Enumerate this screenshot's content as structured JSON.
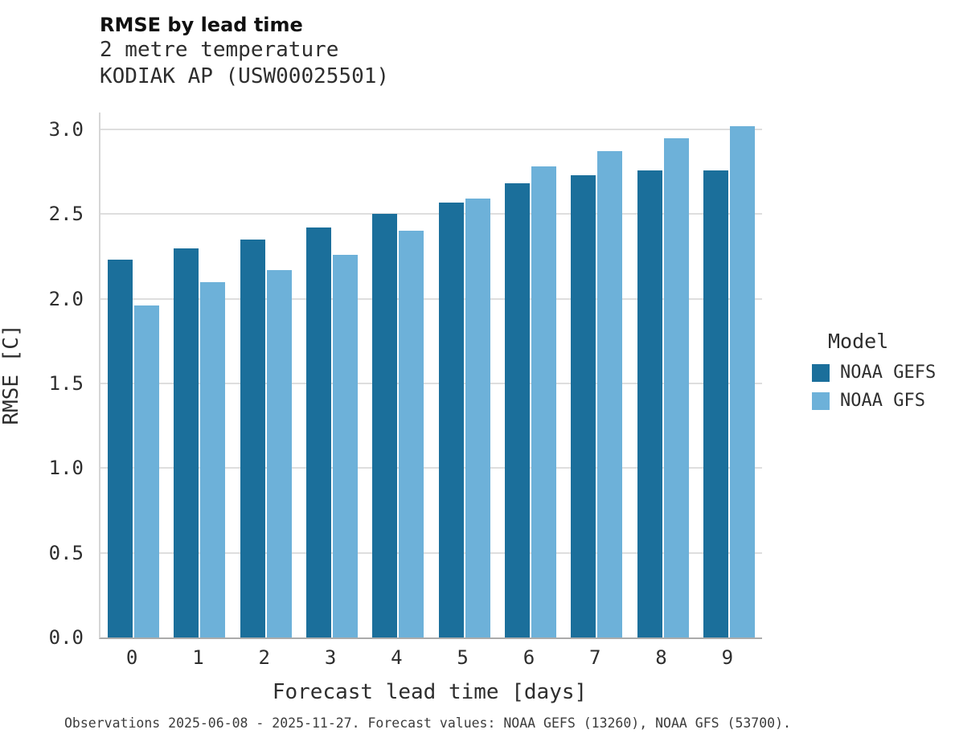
{
  "header": {
    "title": "RMSE by lead time",
    "subtitle_line1": "2 metre temperature",
    "subtitle_line2": "KODIAK AP (USW00025501)"
  },
  "chart_data": {
    "type": "bar",
    "title": "RMSE by lead time",
    "subtitle": [
      "2 metre temperature",
      "KODIAK AP (USW00025501)"
    ],
    "categories": [
      "0",
      "1",
      "2",
      "3",
      "4",
      "5",
      "6",
      "7",
      "8",
      "9"
    ],
    "series": [
      {
        "name": "NOAA GEFS",
        "color": "#1b6f9b",
        "values": [
          2.23,
          2.3,
          2.35,
          2.42,
          2.5,
          2.57,
          2.68,
          2.73,
          2.76,
          2.76
        ]
      },
      {
        "name": "NOAA GFS",
        "color": "#6db1d9",
        "values": [
          1.96,
          2.1,
          2.17,
          2.26,
          2.4,
          2.59,
          2.78,
          2.87,
          2.95,
          3.02
        ]
      }
    ],
    "xlabel": "Forecast lead time [days]",
    "ylabel": "RMSE [C]",
    "ylim": [
      0.0,
      3.0
    ],
    "ytick_values": [
      0.0,
      0.5,
      1.0,
      1.5,
      2.0,
      2.5,
      3.0
    ],
    "ytick_labels": [
      "0.0",
      "0.5",
      "1.0",
      "1.5",
      "2.0",
      "2.5",
      "3.0"
    ],
    "grid": true,
    "legend_title": "Model",
    "legend_position": "right"
  },
  "footer": {
    "caption": "Observations 2025-06-08 - 2025-11-27. Forecast values: NOAA GEFS (13260), NOAA GFS (53700)."
  }
}
